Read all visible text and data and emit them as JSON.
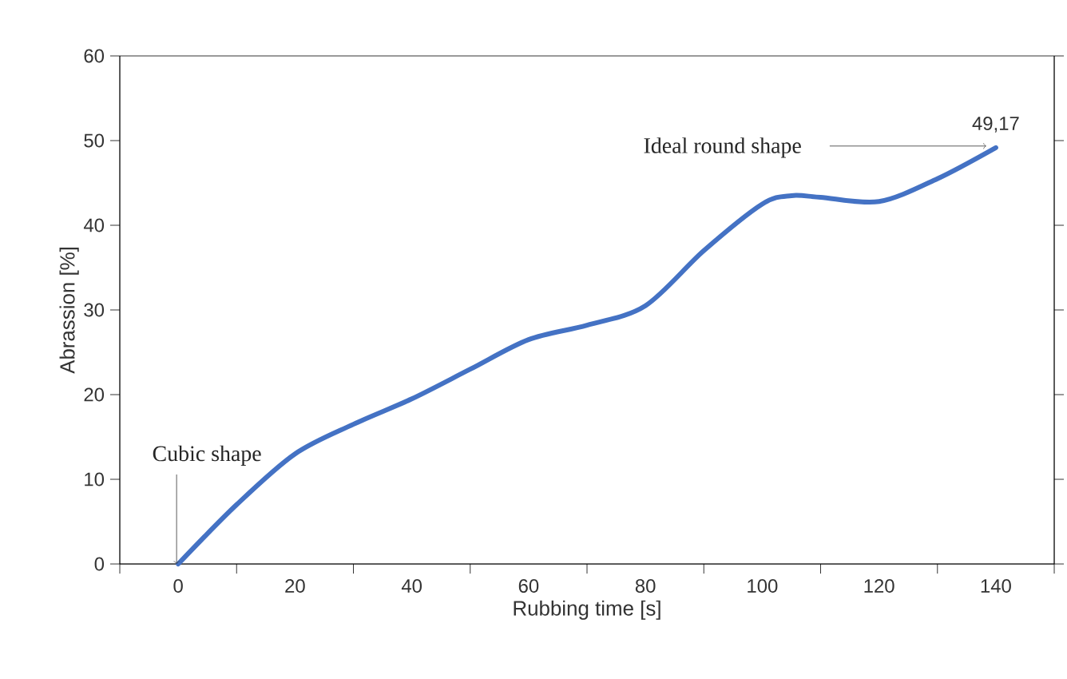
{
  "chart_data": {
    "type": "line",
    "xlabel": "Rubbing time [s]",
    "ylabel": "Abrassion [%]",
    "x": [
      0,
      10,
      20,
      30,
      40,
      50,
      60,
      70,
      80,
      90,
      100,
      105,
      110,
      120,
      130,
      140
    ],
    "series": [
      {
        "color": "#4472c4",
        "values": [
          0,
          7,
          13,
          16.5,
          19.5,
          23,
          26.5,
          28.2,
          30.5,
          37,
          42.5,
          43.5,
          43.3,
          42.8,
          45.5,
          49.17
        ],
        "value_labels": [
          null,
          null,
          null,
          null,
          null,
          null,
          null,
          null,
          null,
          null,
          null,
          null,
          null,
          null,
          null,
          "49,17"
        ]
      }
    ],
    "xlim": [
      -10,
      150
    ],
    "ylim": [
      0,
      60
    ],
    "xticks": [
      {
        "value": -10,
        "label": null
      },
      0,
      {
        "value": 10,
        "label": null
      },
      20,
      {
        "value": 30,
        "label": null
      },
      40,
      {
        "value": 50,
        "label": null
      },
      60,
      {
        "value": 70,
        "label": null
      },
      80,
      {
        "value": 90,
        "label": null
      },
      100,
      {
        "value": 110,
        "label": null
      },
      120,
      {
        "value": 130,
        "label": null
      },
      140,
      {
        "value": 150,
        "label": null
      }
    ],
    "yticks": [
      0,
      10,
      20,
      30,
      40,
      50,
      60
    ],
    "annotations": [
      {
        "text": "Cubic shape",
        "x": 0,
        "y": 0
      },
      {
        "text": "Ideal round shape",
        "x": 140,
        "y": 49.17
      }
    ],
    "marker": "none",
    "line_style": "solid"
  }
}
